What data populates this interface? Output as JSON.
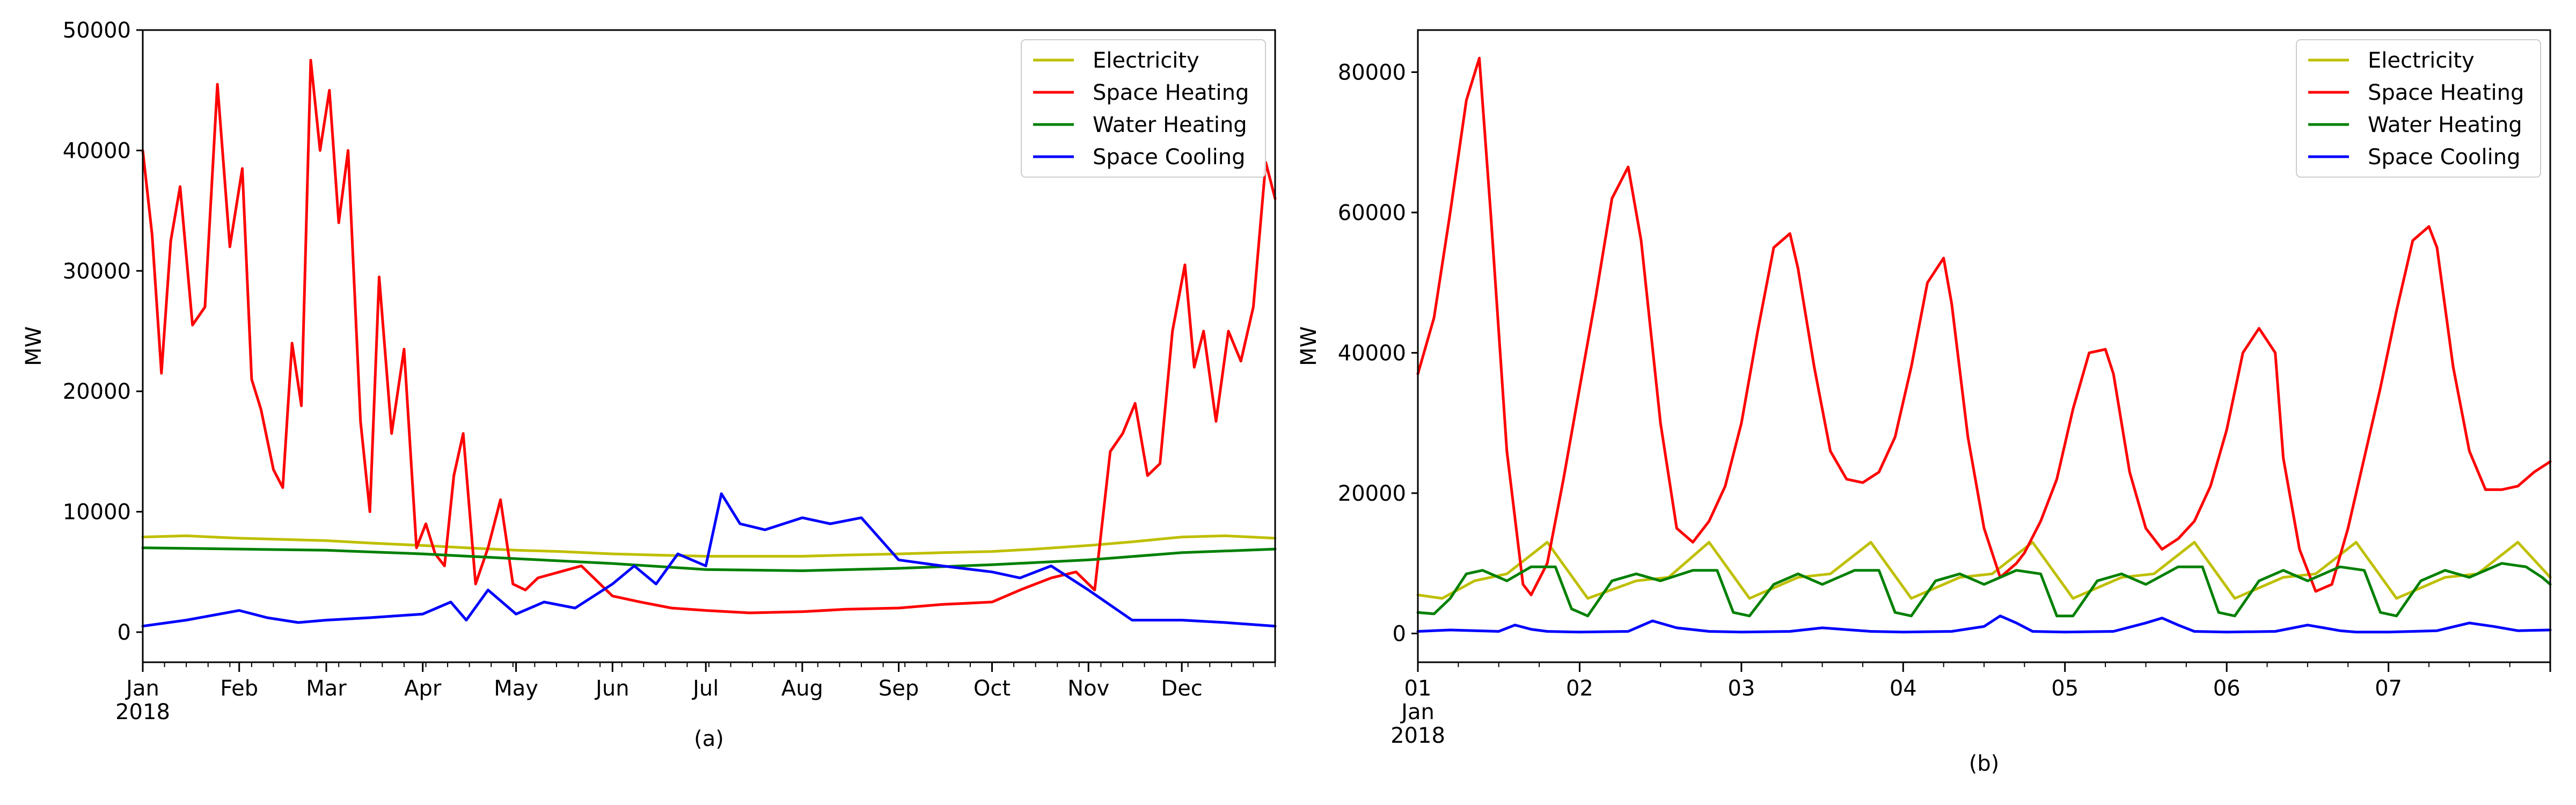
{
  "chart_data": [
    {
      "type": "line",
      "caption": "(a)",
      "title": "",
      "xlabel": "",
      "ylabel": "MW",
      "xlim": [
        "2018-01-01",
        "2018-12-31"
      ],
      "ylim": [
        -2500,
        50000
      ],
      "grid": false,
      "legend_position": "top-right",
      "x_ticks": [
        {
          "x": "2018-01-01",
          "label": "Jan",
          "sublabel": "2018"
        },
        {
          "x": "2018-02-01",
          "label": "Feb"
        },
        {
          "x": "2018-03-01",
          "label": "Mar"
        },
        {
          "x": "2018-04-01",
          "label": "Apr"
        },
        {
          "x": "2018-05-01",
          "label": "May"
        },
        {
          "x": "2018-06-01",
          "label": "Jun"
        },
        {
          "x": "2018-07-01",
          "label": "Jul"
        },
        {
          "x": "2018-08-01",
          "label": "Aug"
        },
        {
          "x": "2018-09-01",
          "label": "Sep"
        },
        {
          "x": "2018-10-01",
          "label": "Oct"
        },
        {
          "x": "2018-11-01",
          "label": "Nov"
        },
        {
          "x": "2018-12-01",
          "label": "Dec"
        }
      ],
      "y_ticks": [
        0,
        10000,
        20000,
        30000,
        40000,
        50000
      ],
      "series": [
        {
          "name": "Electricity",
          "color": "#bfbf00",
          "x": [
            "2018-01-01",
            "2018-01-15",
            "2018-02-01",
            "2018-02-15",
            "2018-03-01",
            "2018-03-15",
            "2018-04-01",
            "2018-04-15",
            "2018-05-01",
            "2018-05-15",
            "2018-06-01",
            "2018-06-15",
            "2018-07-01",
            "2018-07-15",
            "2018-08-01",
            "2018-08-15",
            "2018-09-01",
            "2018-09-15",
            "2018-10-01",
            "2018-10-15",
            "2018-11-01",
            "2018-11-15",
            "2018-12-01",
            "2018-12-15",
            "2018-12-31"
          ],
          "y": [
            7900,
            8000,
            7800,
            7700,
            7600,
            7400,
            7200,
            7000,
            6800,
            6700,
            6500,
            6400,
            6300,
            6300,
            6300,
            6400,
            6500,
            6600,
            6700,
            6900,
            7200,
            7500,
            7900,
            8000,
            7800
          ]
        },
        {
          "name": "Space Heating",
          "color": "#ff0000",
          "x": [
            "2018-01-01",
            "2018-01-04",
            "2018-01-07",
            "2018-01-10",
            "2018-01-13",
            "2018-01-17",
            "2018-01-21",
            "2018-01-25",
            "2018-01-29",
            "2018-02-02",
            "2018-02-05",
            "2018-02-08",
            "2018-02-12",
            "2018-02-15",
            "2018-02-18",
            "2018-02-21",
            "2018-02-24",
            "2018-02-27",
            "2018-03-02",
            "2018-03-05",
            "2018-03-08",
            "2018-03-12",
            "2018-03-15",
            "2018-03-18",
            "2018-03-22",
            "2018-03-26",
            "2018-03-30",
            "2018-04-02",
            "2018-04-05",
            "2018-04-08",
            "2018-04-11",
            "2018-04-14",
            "2018-04-18",
            "2018-04-22",
            "2018-04-26",
            "2018-04-30",
            "2018-05-04",
            "2018-05-08",
            "2018-05-15",
            "2018-05-22",
            "2018-06-01",
            "2018-06-10",
            "2018-06-20",
            "2018-07-01",
            "2018-07-15",
            "2018-08-01",
            "2018-08-15",
            "2018-09-01",
            "2018-09-15",
            "2018-10-01",
            "2018-10-10",
            "2018-10-20",
            "2018-10-28",
            "2018-11-03",
            "2018-11-08",
            "2018-11-12",
            "2018-11-16",
            "2018-11-20",
            "2018-11-24",
            "2018-11-28",
            "2018-12-02",
            "2018-12-05",
            "2018-12-08",
            "2018-12-12",
            "2018-12-16",
            "2018-12-20",
            "2018-12-24",
            "2018-12-28",
            "2018-12-31"
          ],
          "y": [
            40000,
            33000,
            21500,
            32500,
            37000,
            25500,
            27000,
            45500,
            32000,
            38500,
            21000,
            18500,
            13500,
            12000,
            24000,
            18800,
            47500,
            40000,
            45000,
            34000,
            40000,
            17500,
            10000,
            29500,
            16500,
            23500,
            7000,
            9000,
            6500,
            5500,
            13000,
            16500,
            4000,
            7000,
            11000,
            4000,
            3500,
            4500,
            5000,
            5500,
            3000,
            2500,
            2000,
            1800,
            1600,
            1700,
            1900,
            2000,
            2300,
            2500,
            3500,
            4500,
            5000,
            3500,
            15000,
            16500,
            19000,
            13000,
            14000,
            25000,
            30500,
            22000,
            25000,
            17500,
            25000,
            22500,
            27000,
            39000,
            36000
          ]
        },
        {
          "name": "Water Heating",
          "color": "#008000",
          "x": [
            "2018-01-01",
            "2018-02-01",
            "2018-03-01",
            "2018-04-01",
            "2018-05-01",
            "2018-06-01",
            "2018-07-01",
            "2018-08-01",
            "2018-09-01",
            "2018-10-01",
            "2018-11-01",
            "2018-12-01",
            "2018-12-31"
          ],
          "y": [
            7000,
            6900,
            6800,
            6500,
            6100,
            5700,
            5200,
            5100,
            5300,
            5600,
            6000,
            6600,
            6900
          ]
        },
        {
          "name": "Space Cooling",
          "color": "#0000ff",
          "x": [
            "2018-01-01",
            "2018-01-15",
            "2018-02-01",
            "2018-02-10",
            "2018-02-20",
            "2018-03-01",
            "2018-03-15",
            "2018-04-01",
            "2018-04-10",
            "2018-04-15",
            "2018-04-22",
            "2018-05-01",
            "2018-05-10",
            "2018-05-20",
            "2018-06-01",
            "2018-06-08",
            "2018-06-15",
            "2018-06-22",
            "2018-07-01",
            "2018-07-06",
            "2018-07-12",
            "2018-07-20",
            "2018-08-01",
            "2018-08-10",
            "2018-08-20",
            "2018-09-01",
            "2018-09-15",
            "2018-10-01",
            "2018-10-10",
            "2018-10-20",
            "2018-11-01",
            "2018-11-15",
            "2018-12-01",
            "2018-12-15",
            "2018-12-31"
          ],
          "y": [
            500,
            1000,
            1800,
            1200,
            800,
            1000,
            1200,
            1500,
            2500,
            1000,
            3500,
            1500,
            2500,
            2000,
            4000,
            5500,
            4000,
            6500,
            5500,
            11500,
            9000,
            8500,
            9500,
            9000,
            9500,
            6000,
            5500,
            5000,
            4500,
            5500,
            3500,
            1000,
            1000,
            800,
            500
          ]
        }
      ]
    },
    {
      "type": "line",
      "caption": "(b)",
      "title": "",
      "xlabel": "",
      "ylabel": "MW",
      "xlim": [
        0,
        7
      ],
      "ylim": [
        -4100,
        86000
      ],
      "grid": false,
      "legend_position": "top-right",
      "x_ticks": [
        {
          "x": 0,
          "label": "01",
          "sublabel": "Jan\n2018"
        },
        {
          "x": 1,
          "label": "02"
        },
        {
          "x": 2,
          "label": "03"
        },
        {
          "x": 3,
          "label": "04"
        },
        {
          "x": 4,
          "label": "05"
        },
        {
          "x": 5,
          "label": "06"
        },
        {
          "x": 6,
          "label": "07"
        }
      ],
      "y_ticks": [
        0,
        20000,
        40000,
        60000,
        80000
      ],
      "series": [
        {
          "name": "Electricity",
          "color": "#bfbf00",
          "x": [
            0,
            0.15,
            0.35,
            0.55,
            0.8,
            1.05,
            1.35,
            1.55,
            1.8,
            2.05,
            2.35,
            2.55,
            2.8,
            3.05,
            3.35,
            3.55,
            3.8,
            4.05,
            4.35,
            4.55,
            4.8,
            5.05,
            5.35,
            5.55,
            5.8,
            6.05,
            6.35,
            6.55,
            6.8,
            7.0
          ],
          "y": [
            5500,
            5000,
            7500,
            8500,
            13000,
            5000,
            7500,
            8000,
            13000,
            5000,
            8000,
            8500,
            13000,
            5000,
            8000,
            8500,
            13000,
            5000,
            8000,
            8500,
            13000,
            5000,
            8000,
            8500,
            13000,
            5000,
            8000,
            8500,
            13000,
            8000
          ]
        },
        {
          "name": "Space Heating",
          "color": "#ff0000",
          "x": [
            0,
            0.1,
            0.2,
            0.3,
            0.38,
            0.45,
            0.55,
            0.65,
            0.7,
            0.8,
            0.9,
            1.0,
            1.1,
            1.2,
            1.3,
            1.38,
            1.5,
            1.6,
            1.7,
            1.8,
            1.9,
            2.0,
            2.1,
            2.2,
            2.3,
            2.35,
            2.45,
            2.55,
            2.65,
            2.75,
            2.85,
            2.95,
            3.05,
            3.15,
            3.25,
            3.3,
            3.4,
            3.5,
            3.6,
            3.7,
            3.75,
            3.85,
            3.95,
            4.05,
            4.15,
            4.25,
            4.3,
            4.4,
            4.5,
            4.6,
            4.7,
            4.8,
            4.9,
            5.0,
            5.1,
            5.2,
            5.3,
            5.35,
            5.45,
            5.55,
            5.65,
            5.75,
            5.85,
            5.95,
            6.05,
            6.15,
            6.25,
            6.3,
            6.4,
            6.5,
            6.6,
            6.7,
            6.8,
            6.9,
            7.0
          ],
          "y": [
            37000,
            45000,
            60000,
            76000,
            82000,
            60000,
            26000,
            7000,
            5500,
            10000,
            22000,
            35000,
            48000,
            62000,
            66500,
            56000,
            30000,
            15000,
            13000,
            16000,
            21000,
            30000,
            43000,
            55000,
            57000,
            52000,
            38000,
            26000,
            22000,
            21500,
            23000,
            28000,
            38000,
            50000,
            53500,
            47000,
            28000,
            15000,
            8000,
            10000,
            11500,
            16000,
            22000,
            32000,
            40000,
            40500,
            37000,
            23000,
            15000,
            12000,
            13500,
            16000,
            21000,
            29000,
            40000,
            43500,
            40000,
            25000,
            12000,
            6000,
            7000,
            15000,
            25000,
            35000,
            46000,
            56000,
            58000,
            55000,
            38000,
            26000,
            20500,
            20500,
            21000,
            23000,
            24500
          ]
        },
        {
          "name": "Water Heating",
          "color": "#008000",
          "x": [
            0,
            0.1,
            0.2,
            0.3,
            0.4,
            0.55,
            0.7,
            0.85,
            0.95,
            1.05,
            1.2,
            1.35,
            1.5,
            1.7,
            1.85,
            1.95,
            2.05,
            2.2,
            2.35,
            2.5,
            2.7,
            2.85,
            2.95,
            3.05,
            3.2,
            3.35,
            3.5,
            3.7,
            3.85,
            3.95,
            4.05,
            4.2,
            4.35,
            4.5,
            4.7,
            4.85,
            4.95,
            5.05,
            5.2,
            5.35,
            5.5,
            5.7,
            5.85,
            5.95,
            6.05,
            6.2,
            6.35,
            6.5,
            6.7,
            6.85,
            6.95,
            7.0
          ],
          "y": [
            3000,
            2800,
            5000,
            8500,
            9000,
            7500,
            9500,
            9500,
            3500,
            2500,
            7500,
            8500,
            7500,
            9000,
            9000,
            3000,
            2500,
            7000,
            8500,
            7000,
            9000,
            9000,
            3000,
            2500,
            7500,
            8500,
            7000,
            9000,
            8500,
            2500,
            2500,
            7500,
            8500,
            7000,
            9500,
            9500,
            3000,
            2500,
            7500,
            9000,
            7500,
            9500,
            9000,
            3000,
            2500,
            7500,
            9000,
            8000,
            10000,
            9500,
            8000,
            7000
          ]
        },
        {
          "name": "Space Cooling",
          "color": "#0000ff",
          "x": [
            0,
            0.2,
            0.5,
            0.6,
            0.7,
            0.8,
            1.0,
            1.3,
            1.45,
            1.6,
            1.8,
            2.0,
            2.3,
            2.5,
            2.8,
            3.0,
            3.3,
            3.5,
            3.6,
            3.7,
            3.8,
            4.0,
            4.3,
            4.5,
            4.6,
            4.7,
            4.8,
            5.0,
            5.3,
            5.5,
            5.6,
            5.7,
            5.8,
            6.0,
            6.3,
            6.5,
            6.65,
            6.8,
            7.0
          ],
          "y": [
            300,
            500,
            300,
            1200,
            600,
            300,
            200,
            300,
            1800,
            800,
            300,
            200,
            300,
            800,
            300,
            200,
            300,
            1000,
            2500,
            1500,
            300,
            200,
            300,
            1500,
            2200,
            1200,
            300,
            200,
            300,
            1200,
            800,
            400,
            200,
            200,
            400,
            1500,
            1000,
            400,
            500
          ]
        }
      ]
    }
  ]
}
